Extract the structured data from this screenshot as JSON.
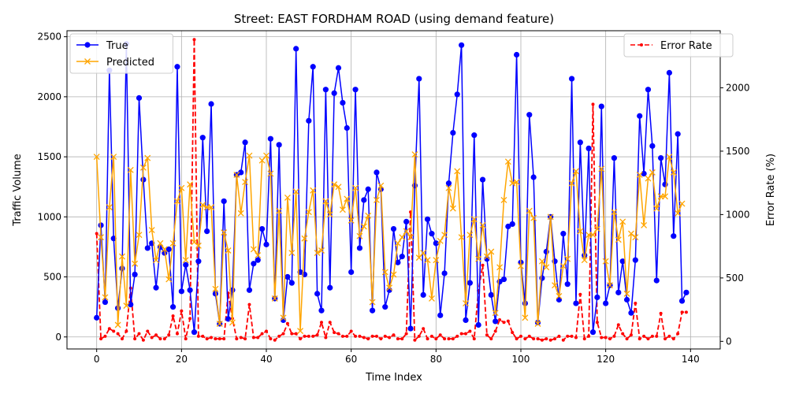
{
  "chart_data": {
    "type": "line",
    "title": "Street: EAST FORDHAM ROAD (using demand feature)",
    "xlabel": "Time Index",
    "ylabel_left": "Traffic Volume",
    "ylabel_right": "Error Rate (%)",
    "xlim": [
      -7,
      147
    ],
    "ylim_left": [
      -100,
      2550
    ],
    "ylim_right": [
      -60,
      2450
    ],
    "x_ticks": [
      0,
      20,
      40,
      60,
      80,
      100,
      120,
      140
    ],
    "y_ticks_left": [
      0,
      500,
      1000,
      1500,
      2000,
      2500
    ],
    "y_ticks_right": [
      0,
      500,
      1000,
      1500,
      2000
    ],
    "grid": true,
    "legend_left_placement": "top-left",
    "legend_right_placement": "top-right",
    "series": [
      {
        "name": "True",
        "axis": "left",
        "color": "#0000ff",
        "marker": "circle",
        "values": [
          160,
          930,
          290,
          2220,
          820,
          240,
          570,
          2440,
          270,
          520,
          1990,
          1310,
          740,
          780,
          410,
          750,
          700,
          730,
          250,
          2250,
          380,
          600,
          390,
          40,
          630,
          1660,
          880,
          1940,
          360,
          110,
          1130,
          150,
          390,
          1350,
          1370,
          1620,
          390,
          610,
          640,
          900,
          770,
          1650,
          320,
          1600,
          140,
          500,
          450,
          2400,
          540,
          520,
          1800,
          2250,
          360,
          220,
          2060,
          410,
          2030,
          2240,
          1950,
          1740,
          540,
          2060,
          740,
          1140,
          1230,
          220,
          1370,
          1230,
          250,
          390,
          900,
          620,
          670,
          960,
          70,
          1260,
          2150,
          350,
          980,
          860,
          780,
          180,
          530,
          1280,
          1700,
          2020,
          2430,
          140,
          450,
          1680,
          100,
          1310,
          650,
          350,
          130,
          460,
          480,
          920,
          940,
          2350,
          620,
          280,
          1850,
          1330,
          120,
          490,
          710,
          1000,
          630,
          310,
          860,
          440,
          2150,
          280,
          1620,
          680,
          1570,
          40,
          330,
          1920,
          280,
          430,
          1490,
          370,
          630,
          310,
          200,
          640,
          1840,
          1360,
          2060,
          1590,
          470,
          1490,
          1270,
          2200,
          840,
          1690,
          300,
          370
        ]
      },
      {
        "name": "Predicted",
        "axis": "left",
        "color": "#ffa500",
        "marker": "x",
        "values": [
          1500,
          830,
          330,
          1080,
          1500,
          100,
          670,
          260,
          1390,
          610,
          850,
          1410,
          1490,
          890,
          640,
          780,
          730,
          480,
          780,
          1130,
          1240,
          640,
          1270,
          790,
          760,
          1100,
          1080,
          1080,
          400,
          110,
          870,
          720,
          120,
          1350,
          1030,
          1290,
          1510,
          730,
          680,
          1470,
          1510,
          1360,
          320,
          1050,
          160,
          1160,
          700,
          1210,
          50,
          820,
          1040,
          1220,
          700,
          720,
          1130,
          1020,
          1270,
          1250,
          1060,
          1150,
          970,
          1240,
          840,
          920,
          1010,
          290,
          1140,
          1260,
          540,
          410,
          520,
          780,
          830,
          880,
          830,
          1520,
          660,
          700,
          640,
          320,
          640,
          800,
          850,
          1240,
          1070,
          1380,
          830,
          280,
          850,
          980,
          650,
          930,
          670,
          710,
          200,
          580,
          1140,
          1460,
          1280,
          1290,
          590,
          160,
          1050,
          990,
          110,
          630,
          580,
          1000,
          430,
          340,
          590,
          650,
          1280,
          1380,
          880,
          640,
          850,
          850,
          900,
          1400,
          630,
          430,
          1040,
          810,
          960,
          360,
          860,
          830,
          1350,
          930,
          1320,
          1370,
          1070,
          1170,
          1170,
          1500,
          1370,
          1030,
          1110
        ]
      },
      {
        "name": "Error Rate",
        "axis": "right",
        "color": "#ff0000",
        "marker": "dot",
        "dashed": true,
        "values": [
          850,
          20,
          40,
          100,
          80,
          60,
          20,
          80,
          420,
          20,
          60,
          10,
          80,
          30,
          50,
          20,
          20,
          50,
          200,
          60,
          240,
          20,
          180,
          2380,
          40,
          40,
          20,
          30,
          20,
          20,
          20,
          380,
          180,
          20,
          30,
          20,
          290,
          30,
          30,
          60,
          80,
          20,
          10,
          40,
          60,
          140,
          60,
          60,
          20,
          40,
          40,
          40,
          50,
          150,
          30,
          150,
          70,
          60,
          40,
          40,
          80,
          40,
          40,
          30,
          20,
          40,
          40,
          20,
          40,
          30,
          50,
          20,
          20,
          60,
          1020,
          10,
          40,
          100,
          20,
          40,
          20,
          50,
          20,
          20,
          20,
          40,
          60,
          60,
          80,
          20,
          400,
          600,
          50,
          20,
          80,
          170,
          150,
          160,
          70,
          20,
          40,
          20,
          40,
          20,
          20,
          10,
          20,
          10,
          20,
          40,
          10,
          40,
          40,
          30,
          370,
          20,
          40,
          1870,
          150,
          30,
          30,
          20,
          40,
          130,
          60,
          20,
          50,
          300,
          20,
          40,
          20,
          40,
          40,
          220,
          20,
          40,
          20,
          60,
          230,
          230
        ]
      }
    ]
  }
}
